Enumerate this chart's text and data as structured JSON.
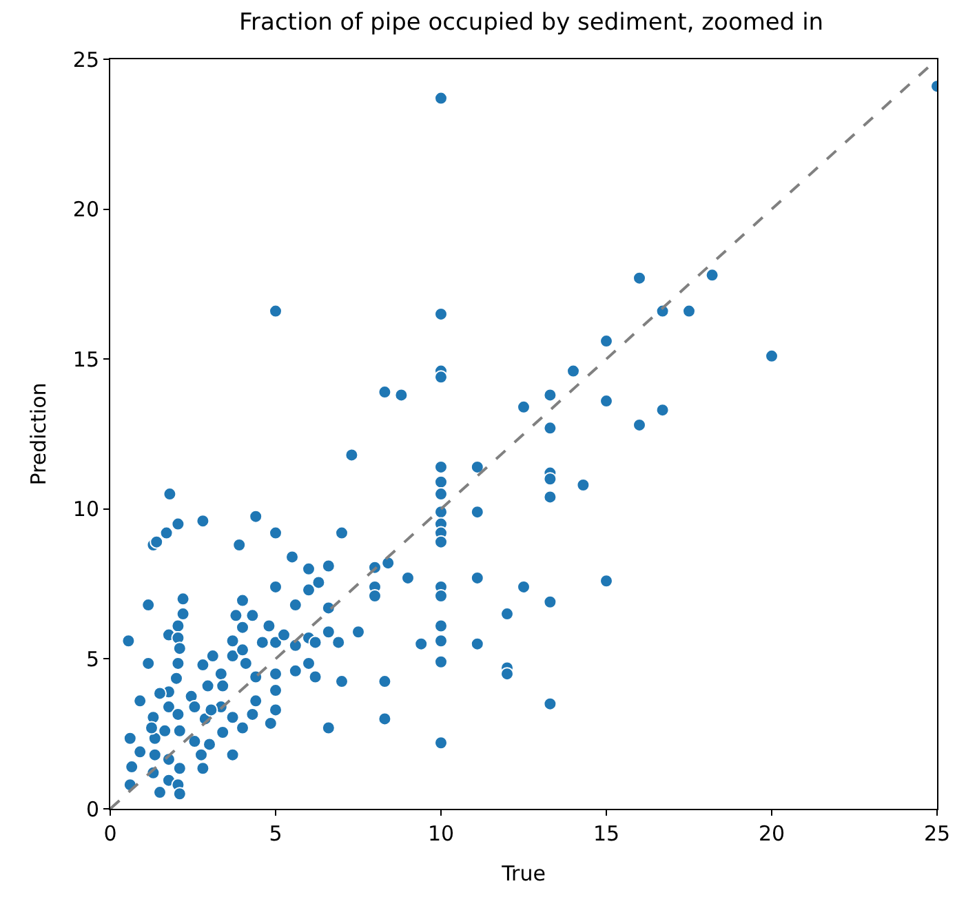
{
  "chart_data": {
    "type": "scatter",
    "title": "Fraction of pipe occupied by sediment, zoomed in",
    "xlabel": "True",
    "ylabel": "Prediction",
    "xlim": [
      0,
      25
    ],
    "ylim": [
      0,
      25
    ],
    "xticks": [
      0,
      5,
      10,
      15,
      20,
      25
    ],
    "yticks": [
      0,
      5,
      10,
      15,
      20,
      25
    ],
    "marker": "circle",
    "series": [
      {
        "color": "#1f77b4",
        "x": [
          10,
          25,
          5,
          10,
          16,
          18.2,
          16.7,
          17.5,
          20,
          15,
          10,
          10,
          14,
          8.3,
          8.8,
          13.3,
          15,
          16,
          16.7,
          12.5,
          13.3,
          7.3,
          11.1,
          10,
          10,
          14.3,
          13.3,
          13.3,
          13.3,
          10,
          10,
          11.1,
          10,
          10,
          10,
          8.4,
          8,
          8,
          8,
          9,
          11.1,
          10,
          10,
          12.5,
          13.3,
          15,
          12,
          10,
          9.4,
          10,
          11.1,
          12,
          12,
          10,
          8.3,
          8.3,
          13.3,
          10,
          6.6,
          7,
          7.5,
          7,
          6,
          5.5,
          6.6,
          6.3,
          5,
          4.4,
          3.9,
          2.8,
          1.8,
          2.05,
          1.3,
          1.4,
          1.7,
          2.2,
          2.2,
          1.15,
          0.55,
          1.15,
          1.77,
          2.05,
          2.05,
          2.1,
          2.05,
          2.0,
          2.8,
          3.1,
          3.35,
          3.7,
          4.0,
          4.8,
          5.0,
          4.6,
          5.25,
          5.6,
          6.0,
          6.2,
          6.6,
          6.9,
          5.6,
          6.0,
          6.2,
          6.0,
          5.0,
          5.6,
          6.6,
          4.0,
          3.8,
          4.3,
          4.1,
          4.4,
          5.0,
          5.0,
          3.7,
          4.0,
          3.4,
          2.95,
          2.45,
          1.77,
          1.5,
          0.9,
          1.77,
          1.3,
          2.05,
          2.55,
          2.87,
          3.35,
          3.7,
          4.4,
          4.3,
          5.0,
          4.85,
          4.0,
          3.4,
          3.0,
          3.7,
          2.75,
          2.55,
          2.1,
          1.65,
          1.35,
          0.6,
          0.9,
          1.35,
          1.77,
          2.1,
          2.8,
          0.65,
          1.3,
          1.77,
          2.05,
          0.6,
          1.5,
          2.1,
          3.05,
          1.25
        ],
        "values": [
          23.7,
          24.1,
          16.6,
          16.5,
          17.7,
          17.8,
          16.6,
          16.6,
          15.1,
          15.6,
          14.6,
          14.4,
          14.6,
          13.9,
          13.8,
          13.8,
          13.6,
          12.8,
          13.3,
          13.4,
          12.7,
          11.8,
          11.4,
          11.4,
          10.9,
          10.8,
          11.2,
          11.0,
          10.4,
          10.5,
          9.9,
          9.9,
          9.5,
          9.2,
          8.9,
          8.2,
          8.05,
          7.4,
          7.1,
          7.7,
          7.7,
          7.4,
          7.1,
          7.4,
          6.9,
          7.6,
          6.5,
          6.1,
          5.5,
          5.6,
          5.5,
          4.7,
          4.5,
          4.9,
          4.25,
          3.0,
          3.5,
          2.2,
          2.7,
          4.25,
          5.9,
          9.2,
          8.0,
          8.4,
          8.1,
          7.55,
          9.2,
          9.75,
          8.8,
          9.6,
          10.5,
          9.5,
          8.8,
          8.9,
          9.2,
          7.0,
          6.5,
          6.8,
          5.6,
          4.85,
          5.8,
          6.1,
          5.7,
          5.35,
          4.85,
          4.35,
          4.8,
          5.1,
          4.5,
          5.6,
          6.05,
          6.1,
          5.55,
          5.55,
          5.8,
          5.45,
          5.7,
          5.55,
          5.9,
          5.55,
          4.6,
          4.85,
          4.4,
          7.3,
          7.4,
          6.8,
          6.7,
          6.95,
          6.45,
          6.45,
          4.85,
          4.4,
          4.5,
          3.95,
          5.1,
          5.3,
          4.1,
          4.1,
          3.75,
          3.9,
          3.85,
          3.6,
          3.4,
          3.05,
          3.15,
          3.4,
          3.0,
          3.4,
          3.05,
          3.6,
          3.15,
          3.3,
          2.85,
          2.7,
          2.55,
          2.15,
          1.8,
          1.8,
          2.25,
          2.6,
          2.6,
          2.35,
          2.35,
          1.9,
          1.8,
          1.65,
          1.35,
          1.35,
          1.4,
          1.2,
          0.95,
          0.8,
          0.8,
          0.55,
          0.5,
          3.3,
          2.7
        ]
      },
      {
        "type": "line",
        "color": "#808080",
        "line_style": "dashed",
        "marker": "none",
        "x": [
          0,
          25
        ],
        "values": [
          0,
          25
        ]
      }
    ]
  }
}
